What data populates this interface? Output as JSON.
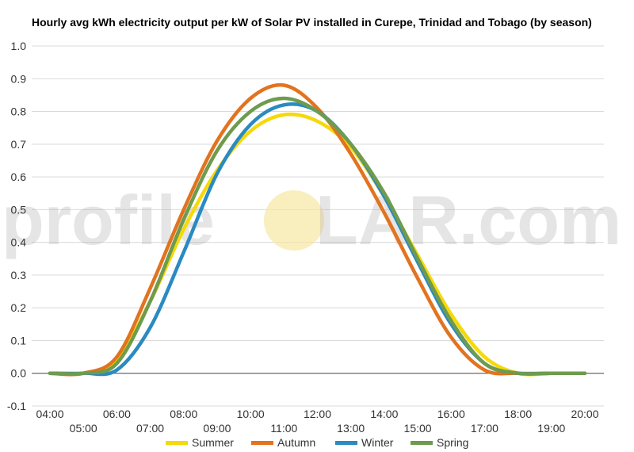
{
  "chart_data": {
    "type": "line",
    "title": "Hourly avg kWh electricity output per kW of Solar PV installed in Curepe, Trinidad and Tobago (by season)",
    "xlabel": "",
    "ylabel": "",
    "ylim": [
      -0.1,
      1.0
    ],
    "y_ticks": [
      "-0.1",
      "0.0",
      "0.1",
      "0.2",
      "0.3",
      "0.4",
      "0.5",
      "0.6",
      "0.7",
      "0.8",
      "0.9",
      "1.0"
    ],
    "x_ticks": [
      "04:00",
      "05:00",
      "06:00",
      "07:00",
      "08:00",
      "09:00",
      "10:00",
      "11:00",
      "12:00",
      "13:00",
      "14:00",
      "15:00",
      "16:00",
      "17:00",
      "18:00",
      "19:00",
      "20:00"
    ],
    "x": [
      4,
      5,
      6,
      7,
      8,
      9,
      10,
      11,
      12,
      13,
      14,
      15,
      16,
      17,
      18,
      19,
      20
    ],
    "grid": true,
    "legend_position": "bottom",
    "series": [
      {
        "name": "Summer",
        "color": "#f5d90a",
        "values": [
          0.0,
          0.0,
          0.04,
          0.22,
          0.44,
          0.62,
          0.74,
          0.79,
          0.77,
          0.69,
          0.54,
          0.36,
          0.18,
          0.05,
          0.0,
          0.0,
          0.0
        ]
      },
      {
        "name": "Autumn",
        "color": "#e2731f",
        "values": [
          0.0,
          0.0,
          0.05,
          0.26,
          0.5,
          0.71,
          0.84,
          0.88,
          0.81,
          0.67,
          0.49,
          0.29,
          0.11,
          0.01,
          0.0,
          0.0,
          0.0
        ]
      },
      {
        "name": "Winter",
        "color": "#2a8ac2",
        "values": [
          0.0,
          0.0,
          0.01,
          0.14,
          0.37,
          0.61,
          0.76,
          0.82,
          0.8,
          0.7,
          0.54,
          0.34,
          0.15,
          0.03,
          0.0,
          0.0,
          0.0
        ]
      },
      {
        "name": "Spring",
        "color": "#6e9b4e",
        "values": [
          0.0,
          0.0,
          0.03,
          0.22,
          0.47,
          0.68,
          0.8,
          0.84,
          0.8,
          0.7,
          0.55,
          0.35,
          0.16,
          0.03,
          0.0,
          0.0,
          0.0
        ]
      }
    ]
  },
  "watermark": {
    "left": "profile",
    "right": "LAR.com",
    "sun_color": "#f7e7a1"
  }
}
